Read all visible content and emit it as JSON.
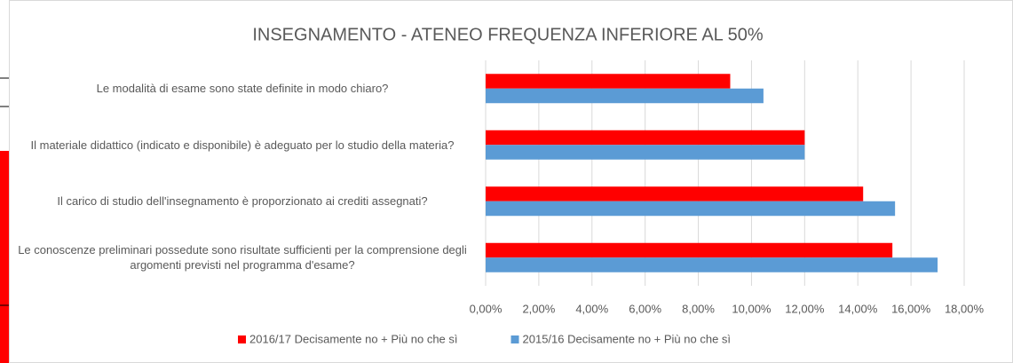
{
  "chart_data": {
    "type": "bar",
    "orientation": "horizontal",
    "title": "INSEGNAMENTO - ATENEO FREQUENZA INFERIORE AL 50%",
    "categories": [
      "Le modalità di esame sono state definite in modo chiaro?",
      "Il materiale didattico (indicato e disponibile) è adeguato per lo studio della materia?",
      "Il carico di studio dell'insegnamento è proporzionato ai crediti assegnati?",
      "Le conoscenze preliminari possedute sono risultate sufficienti per la comprensione degli argomenti previsti nel programma d'esame?"
    ],
    "series": [
      {
        "name": "2016/17 Decisamente no + Più no che sì",
        "color": "#ff0000",
        "values": [
          9.2,
          12.0,
          14.2,
          15.3
        ]
      },
      {
        "name": "2015/16 Decisamente no + Più no che sì",
        "color": "#5b9bd5",
        "values": [
          10.45,
          12.0,
          15.4,
          17.0
        ]
      }
    ],
    "xlim": [
      0,
      18
    ],
    "xticks": [
      {
        "value": 0,
        "label": "0,00%"
      },
      {
        "value": 2,
        "label": "2,00%"
      },
      {
        "value": 4,
        "label": "4,00%"
      },
      {
        "value": 6,
        "label": "6,00%"
      },
      {
        "value": 8,
        "label": "8,00%"
      },
      {
        "value": 10,
        "label": "10,00%"
      },
      {
        "value": 12,
        "label": "12,00%"
      },
      {
        "value": 14,
        "label": "14,00%"
      },
      {
        "value": 16,
        "label": "16,00%"
      },
      {
        "value": 18,
        "label": "18,00%"
      }
    ],
    "grid": true,
    "legend": "bottom"
  }
}
